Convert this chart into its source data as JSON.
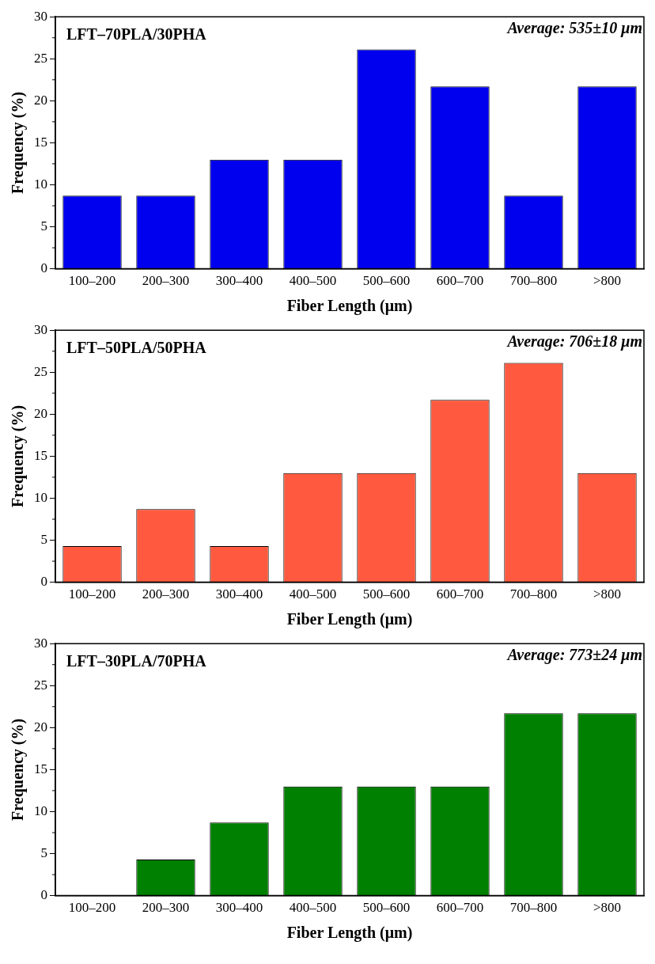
{
  "chart_data": [
    {
      "type": "bar",
      "title": "LFT–70PLA/30PHA",
      "annotations": [
        "Average: 535±10 μm"
      ],
      "categories": [
        "100–200",
        "200–300",
        "300–400",
        "400–500",
        "500–600",
        "600–700",
        "700–800",
        ">800"
      ],
      "values": [
        8.7,
        8.7,
        13.0,
        13.0,
        26.1,
        21.7,
        8.7,
        21.7
      ],
      "color": "#0000ee",
      "xlabel": "Fiber Length (μm)",
      "ylabel": "Frequency (%)",
      "ylim": [
        0,
        30
      ],
      "yticks": [
        0,
        5,
        10,
        15,
        20,
        25,
        30
      ]
    },
    {
      "type": "bar",
      "title": "LFT–50PLA/50PHA",
      "annotations": [
        "Average: 706±18 μm"
      ],
      "categories": [
        "100–200",
        "200–300",
        "300–400",
        "400–500",
        "500–600",
        "600–700",
        "700–800",
        ">800"
      ],
      "values": [
        4.3,
        8.7,
        4.3,
        13.0,
        13.0,
        21.7,
        26.1,
        13.0
      ],
      "color": "#ff5a40",
      "xlabel": "Fiber Length (μm)",
      "ylabel": "Frequency (%)",
      "ylim": [
        0,
        30
      ],
      "yticks": [
        0,
        5,
        10,
        15,
        20,
        25,
        30
      ]
    },
    {
      "type": "bar",
      "title": "LFT–30PLA/70PHA",
      "annotations": [
        "Average: 773±24 μm"
      ],
      "categories": [
        "100–200",
        "200–300",
        "300–400",
        "400–500",
        "500–600",
        "600–700",
        "700–800",
        ">800"
      ],
      "values": [
        0,
        4.3,
        8.7,
        13.0,
        13.0,
        13.0,
        21.7,
        21.7
      ],
      "color": "#008000",
      "xlabel": "Fiber Length (μm)",
      "ylabel": "Frequency (%)",
      "ylim": [
        0,
        30
      ],
      "yticks": [
        0,
        5,
        10,
        15,
        20,
        25,
        30
      ]
    }
  ]
}
